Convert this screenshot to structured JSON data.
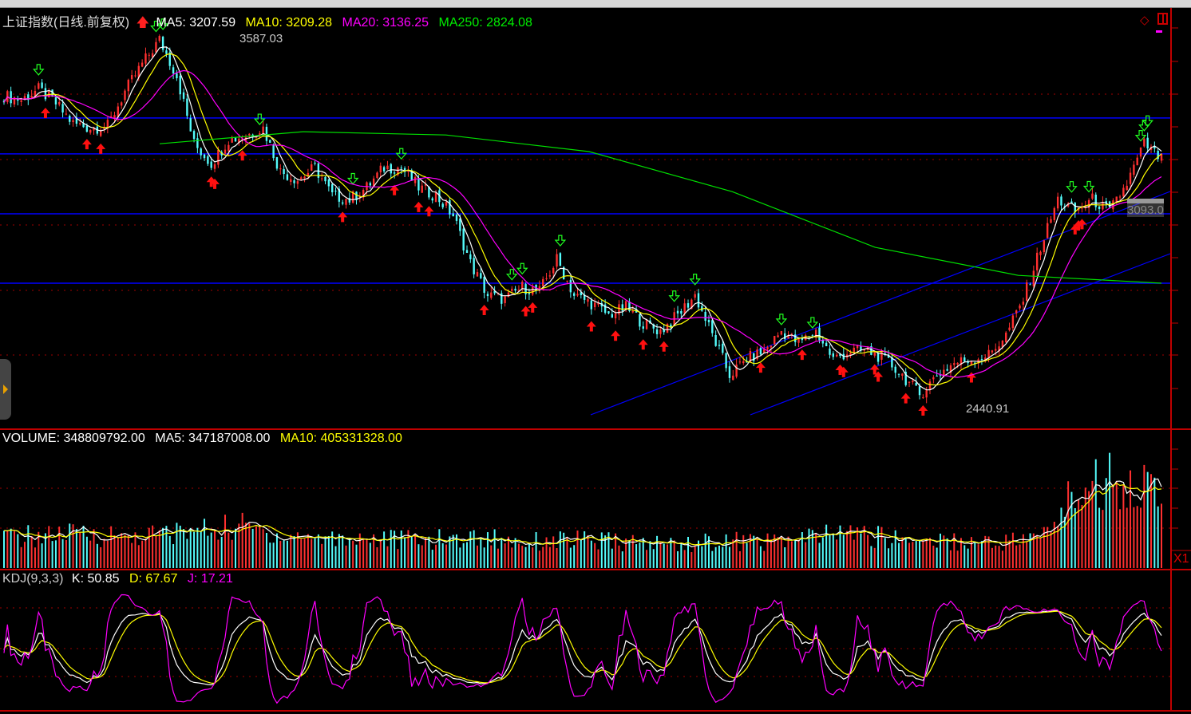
{
  "header": {
    "title": "上证指数(日线.前复权)",
    "ma5": "MA5: 3207.59",
    "ma10": "MA10: 3209.28",
    "ma20": "MA20: 3136.25",
    "ma250": "MA250: 2824.08"
  },
  "volume_header": {
    "volume": "VOLUME: 348809792.00",
    "ma5": "MA5: 347187008.00",
    "ma10": "MA10: 405331328.00"
  },
  "kdj_header": {
    "name": "KDJ(9,3,3)",
    "k": "K: 50.85",
    "d": "D: 67.67",
    "j": "J: 17.21"
  },
  "annotations": {
    "high": "3587.03",
    "low": "2440.91",
    "cursor_price": "3093.0",
    "volume_scale": "X1"
  },
  "colors": {
    "up": "#ff3030",
    "down": "#54fcfc",
    "ma5": "#ffffff",
    "ma10": "#ffff00",
    "ma20": "#ff00ff",
    "ma250": "#00e000",
    "guide_lines": "#0000ff",
    "grid": "#a00000",
    "axis": "#c00000"
  },
  "chart_data": [
    {
      "type": "candlestick",
      "title": "上证指数(日线.前复权)",
      "close_keypoints": [
        3403,
        3391,
        3423,
        3379,
        3318,
        3305,
        3310,
        3416,
        3501,
        3575,
        3465,
        3256,
        3195,
        3269,
        3281,
        3305,
        3171,
        3146,
        3183,
        3097,
        3085,
        3122,
        3183,
        3183,
        3122,
        3097,
        3036,
        2889,
        2791,
        2779,
        2816,
        2803,
        2901,
        2791,
        2767,
        2730,
        2754,
        2705,
        2681,
        2730,
        2791,
        2669,
        2546,
        2595,
        2620,
        2681,
        2644,
        2681,
        2595,
        2620,
        2620,
        2595,
        2546,
        2485,
        2546,
        2583,
        2595,
        2608,
        2669,
        2779,
        2938,
        3085,
        3048,
        3085,
        3048,
        3134,
        3256,
        3207
      ],
      "high": 3587.03,
      "low": 2440.91,
      "ma250_keypoints": [
        3256,
        3293,
        3283,
        3232,
        3109,
        2938,
        2852,
        2828
      ],
      "horizontal_lines": [
        3335,
        3225,
        3041,
        2828
      ],
      "ylim": [
        2400,
        3680
      ],
      "grid": true
    },
    {
      "type": "bar",
      "title": "VOLUME",
      "unit": "millions",
      "volume_keypoints": [
        160,
        170,
        180,
        165,
        180,
        200,
        220,
        170,
        160,
        160,
        150,
        150,
        160,
        140,
        150,
        140,
        130,
        130,
        140,
        140,
        150,
        190,
        160,
        150,
        140,
        140,
        160,
        440,
        480,
        380
      ],
      "last_volume": 348809792.0,
      "ma5": 347187008.0,
      "ma10": 405331328.0
    },
    {
      "type": "line",
      "title": "KDJ(9,3,3)",
      "last": {
        "K": 50.85,
        "D": 67.67,
        "J": 17.21
      }
    }
  ]
}
